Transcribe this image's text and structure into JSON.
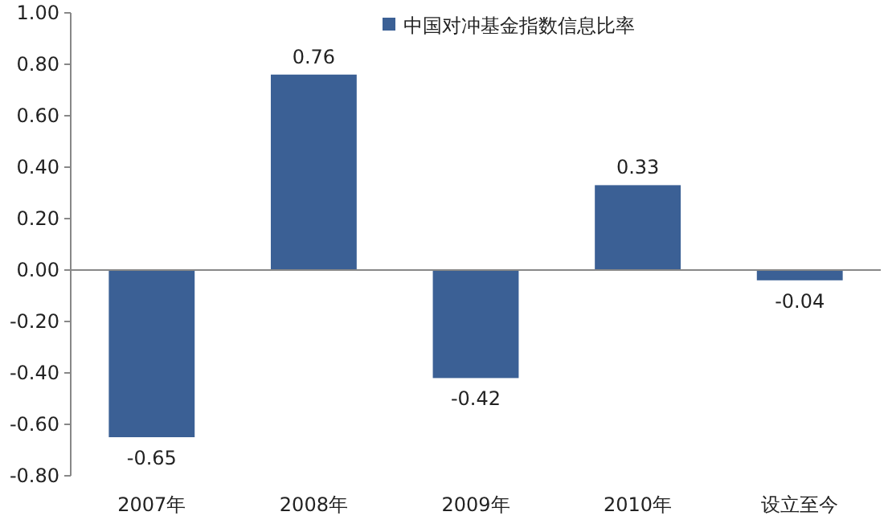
{
  "chart_data": {
    "type": "bar",
    "categories": [
      "2007年",
      "2008年",
      "2009年",
      "2010年",
      "设立至今"
    ],
    "series": [
      {
        "name": "中国对冲基金指数信息比率",
        "color": "#3b6095",
        "values": [
          -0.65,
          0.76,
          -0.42,
          0.33,
          -0.04
        ]
      }
    ],
    "ylim": [
      -0.8,
      1.0
    ],
    "yticks": [
      {
        "value": -0.8,
        "label": "-0.80"
      },
      {
        "value": -0.6,
        "label": "-0.60"
      },
      {
        "value": -0.4,
        "label": "-0.40"
      },
      {
        "value": -0.2,
        "label": "-0.20"
      },
      {
        "value": 0,
        "label": "0.00"
      },
      {
        "value": 0.2,
        "label": "0.20"
      },
      {
        "value": 0.4,
        "label": "0.40"
      },
      {
        "value": 0.6,
        "label": "0.60"
      },
      {
        "value": 0.8,
        "label": "0.80"
      },
      {
        "value": 1.0,
        "label": "1.00"
      }
    ],
    "data_labels": true,
    "legend": "top right"
  }
}
